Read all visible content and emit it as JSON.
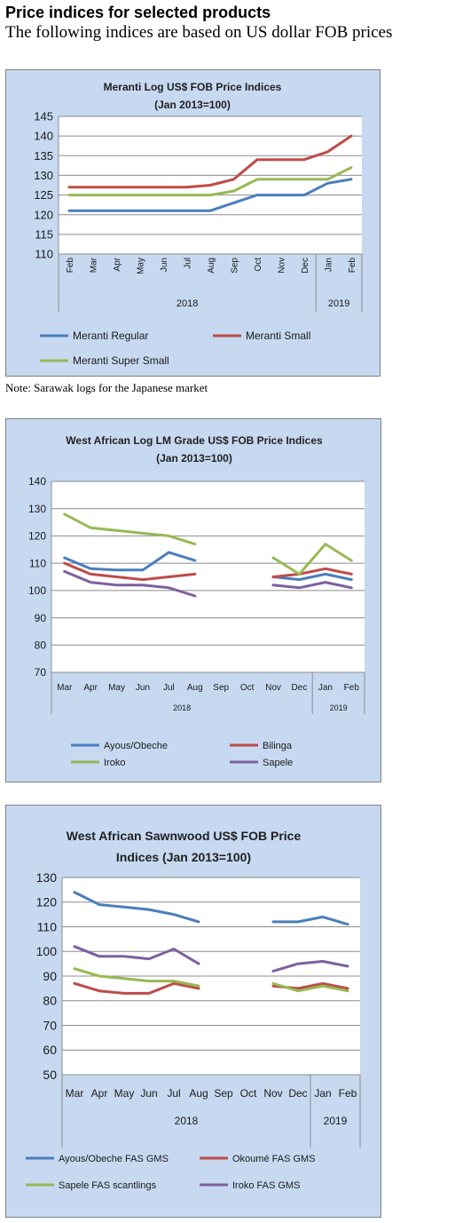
{
  "page": {
    "heading": "Price indices for selected products",
    "subheading": "The following indices are based on US dollar FOB prices",
    "note": "Note: Sarawak logs for the Japanese market"
  },
  "chart_data": [
    {
      "type": "line",
      "title_lines": [
        "Meranti Log US$ FOB Price Indices",
        "(Jan 2013=100)"
      ],
      "categories": [
        "Feb",
        "Mar",
        "Apr",
        "May",
        "Jun",
        "Jul",
        "Aug",
        "Sep",
        "Oct",
        "Nov",
        "Dec",
        "Jan",
        "Feb"
      ],
      "groups": [
        {
          "label": "2018",
          "count": 11
        },
        {
          "label": "2019",
          "count": 2
        }
      ],
      "ylim": [
        110,
        145
      ],
      "yticks": [
        110,
        115,
        120,
        125,
        130,
        135,
        140,
        145
      ],
      "grid": true,
      "legend": "bottom",
      "series": [
        {
          "name": "Meranti Regular",
          "color": "#4a7ebb",
          "values": [
            121,
            121,
            121,
            121,
            121,
            121,
            121,
            123,
            125,
            125,
            125,
            128,
            129
          ]
        },
        {
          "name": "Meranti Small",
          "color": "#be4b48",
          "values": [
            127,
            127,
            127,
            127,
            127,
            127,
            127.5,
            129,
            134,
            134,
            134,
            136,
            140
          ]
        },
        {
          "name": "Meranti Super Small",
          "color": "#98b954",
          "values": [
            125,
            125,
            125,
            125,
            125,
            125,
            125,
            126,
            129,
            129,
            129,
            129,
            132
          ]
        }
      ]
    },
    {
      "type": "line",
      "title_lines": [
        "West African Log LM Grade US$ FOB Price Indices",
        "(Jan 2013=100)"
      ],
      "categories": [
        "Mar",
        "Apr",
        "May",
        "Jun",
        "Jul",
        "Aug",
        "Sep",
        "Oct",
        "Nov",
        "Dec",
        "Jan",
        "Feb"
      ],
      "groups": [
        {
          "label": "2018",
          "count": 10
        },
        {
          "label": "2019",
          "count": 2
        }
      ],
      "ylim": [
        70,
        140
      ],
      "yticks": [
        70,
        80,
        90,
        100,
        110,
        120,
        130,
        140
      ],
      "grid": true,
      "legend": "bottom",
      "series": [
        {
          "name": "Ayous/Obeche",
          "color": "#4a7ebb",
          "values": [
            112,
            108,
            107.5,
            107.5,
            114,
            111,
            null,
            null,
            105,
            104,
            106,
            104
          ]
        },
        {
          "name": "Bilinga",
          "color": "#be4b48",
          "values": [
            110,
            106,
            105,
            104,
            105,
            106,
            null,
            null,
            105,
            106,
            108,
            106
          ]
        },
        {
          "name": "Iroko",
          "color": "#98b954",
          "values": [
            128,
            123,
            122,
            121,
            120,
            117,
            null,
            null,
            112,
            106,
            117,
            111
          ]
        },
        {
          "name": "Sapele",
          "color": "#7d60a0",
          "values": [
            107,
            103,
            102,
            102,
            101,
            98,
            null,
            null,
            102,
            101,
            103,
            101
          ]
        }
      ]
    },
    {
      "type": "line",
      "title_lines": [
        "West African Sawnwood US$ FOB Price",
        "Indices (Jan 2013=100)"
      ],
      "categories": [
        "Mar",
        "Apr",
        "May",
        "Jun",
        "Jul",
        "Aug",
        "Sep",
        "Oct",
        "Nov",
        "Dec",
        "Jan",
        "Feb"
      ],
      "groups": [
        {
          "label": "2018",
          "count": 10
        },
        {
          "label": "2019",
          "count": 2
        }
      ],
      "ylim": [
        50,
        130
      ],
      "yticks": [
        50,
        60,
        70,
        80,
        90,
        100,
        110,
        120,
        130
      ],
      "grid": true,
      "legend": "bottom",
      "series": [
        {
          "name": "Ayous/Obeche  FAS GMS",
          "color": "#4a7ebb",
          "values": [
            124,
            119,
            118,
            117,
            115,
            112,
            null,
            null,
            112,
            112,
            114,
            111
          ]
        },
        {
          "name": "Okoumé  FAS GMS",
          "color": "#be4b48",
          "values": [
            87,
            84,
            83,
            83,
            87,
            85,
            null,
            null,
            86,
            85,
            87,
            85
          ]
        },
        {
          "name": "Sapele FAS scantlings",
          "color": "#98b954",
          "values": [
            93,
            90,
            89,
            88,
            88,
            86,
            null,
            null,
            87,
            84,
            86,
            84
          ]
        },
        {
          "name": "Iroko FAS GMS",
          "color": "#7d60a0",
          "values": [
            102,
            98,
            98,
            97,
            101,
            95,
            null,
            null,
            92,
            95,
            96,
            94
          ]
        }
      ]
    }
  ]
}
